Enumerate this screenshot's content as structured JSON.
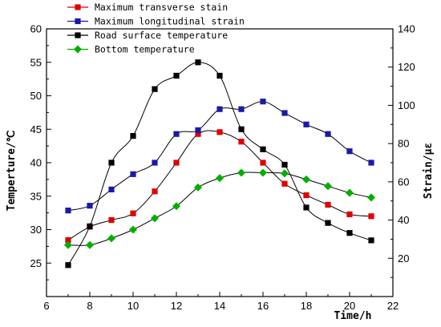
{
  "chart_data": {
    "type": "line",
    "xlabel": "Time/h",
    "ylabel_left": "Temperture/℃",
    "ylabel_right": "Strain/με",
    "xlim": [
      6,
      22
    ],
    "ylim_left": [
      20,
      60
    ],
    "ylim_right": [
      0,
      140
    ],
    "x_ticks": [
      6,
      8,
      10,
      12,
      14,
      16,
      18,
      20,
      22
    ],
    "y_left_ticks": [
      25,
      30,
      35,
      40,
      45,
      50,
      55,
      60
    ],
    "y_right_ticks": [
      20,
      40,
      60,
      80,
      100,
      120,
      140
    ],
    "grid": false,
    "legend_position": "top-left",
    "x": [
      7,
      8,
      9,
      10,
      11,
      12,
      13,
      14,
      15,
      16,
      17,
      18,
      19,
      20,
      21
    ],
    "series": [
      {
        "name": "Maximum transverse stain",
        "axis": "right",
        "color": "#e00000",
        "marker": "square",
        "values": [
          29.5,
          36.5,
          40,
          43.5,
          55,
          70,
          85,
          86,
          81,
          70,
          59,
          53,
          48,
          43,
          42
        ]
      },
      {
        "name": "Maximum longitudinal strain",
        "axis": "right",
        "color": "#1a1aa8",
        "marker": "square",
        "values": [
          45,
          47.5,
          56,
          64,
          70,
          85,
          87,
          98,
          98,
          102,
          96,
          90,
          85,
          76,
          70
        ]
      },
      {
        "name": "Road surface temperature",
        "axis": "left",
        "color": "#000000",
        "marker": "square",
        "values": [
          24.7,
          30.5,
          40,
          44,
          51,
          53,
          55,
          53,
          45,
          42,
          39.7,
          33.3,
          31,
          29.5,
          28.4
        ]
      },
      {
        "name": "Bottom temperature",
        "axis": "left",
        "color": "#00b000",
        "marker": "diamond",
        "values": [
          27.7,
          27.7,
          28.7,
          30,
          31.7,
          33.5,
          36.3,
          37.7,
          38.5,
          38.5,
          38.4,
          37.5,
          36.5,
          35.5,
          34.8
        ]
      }
    ]
  }
}
